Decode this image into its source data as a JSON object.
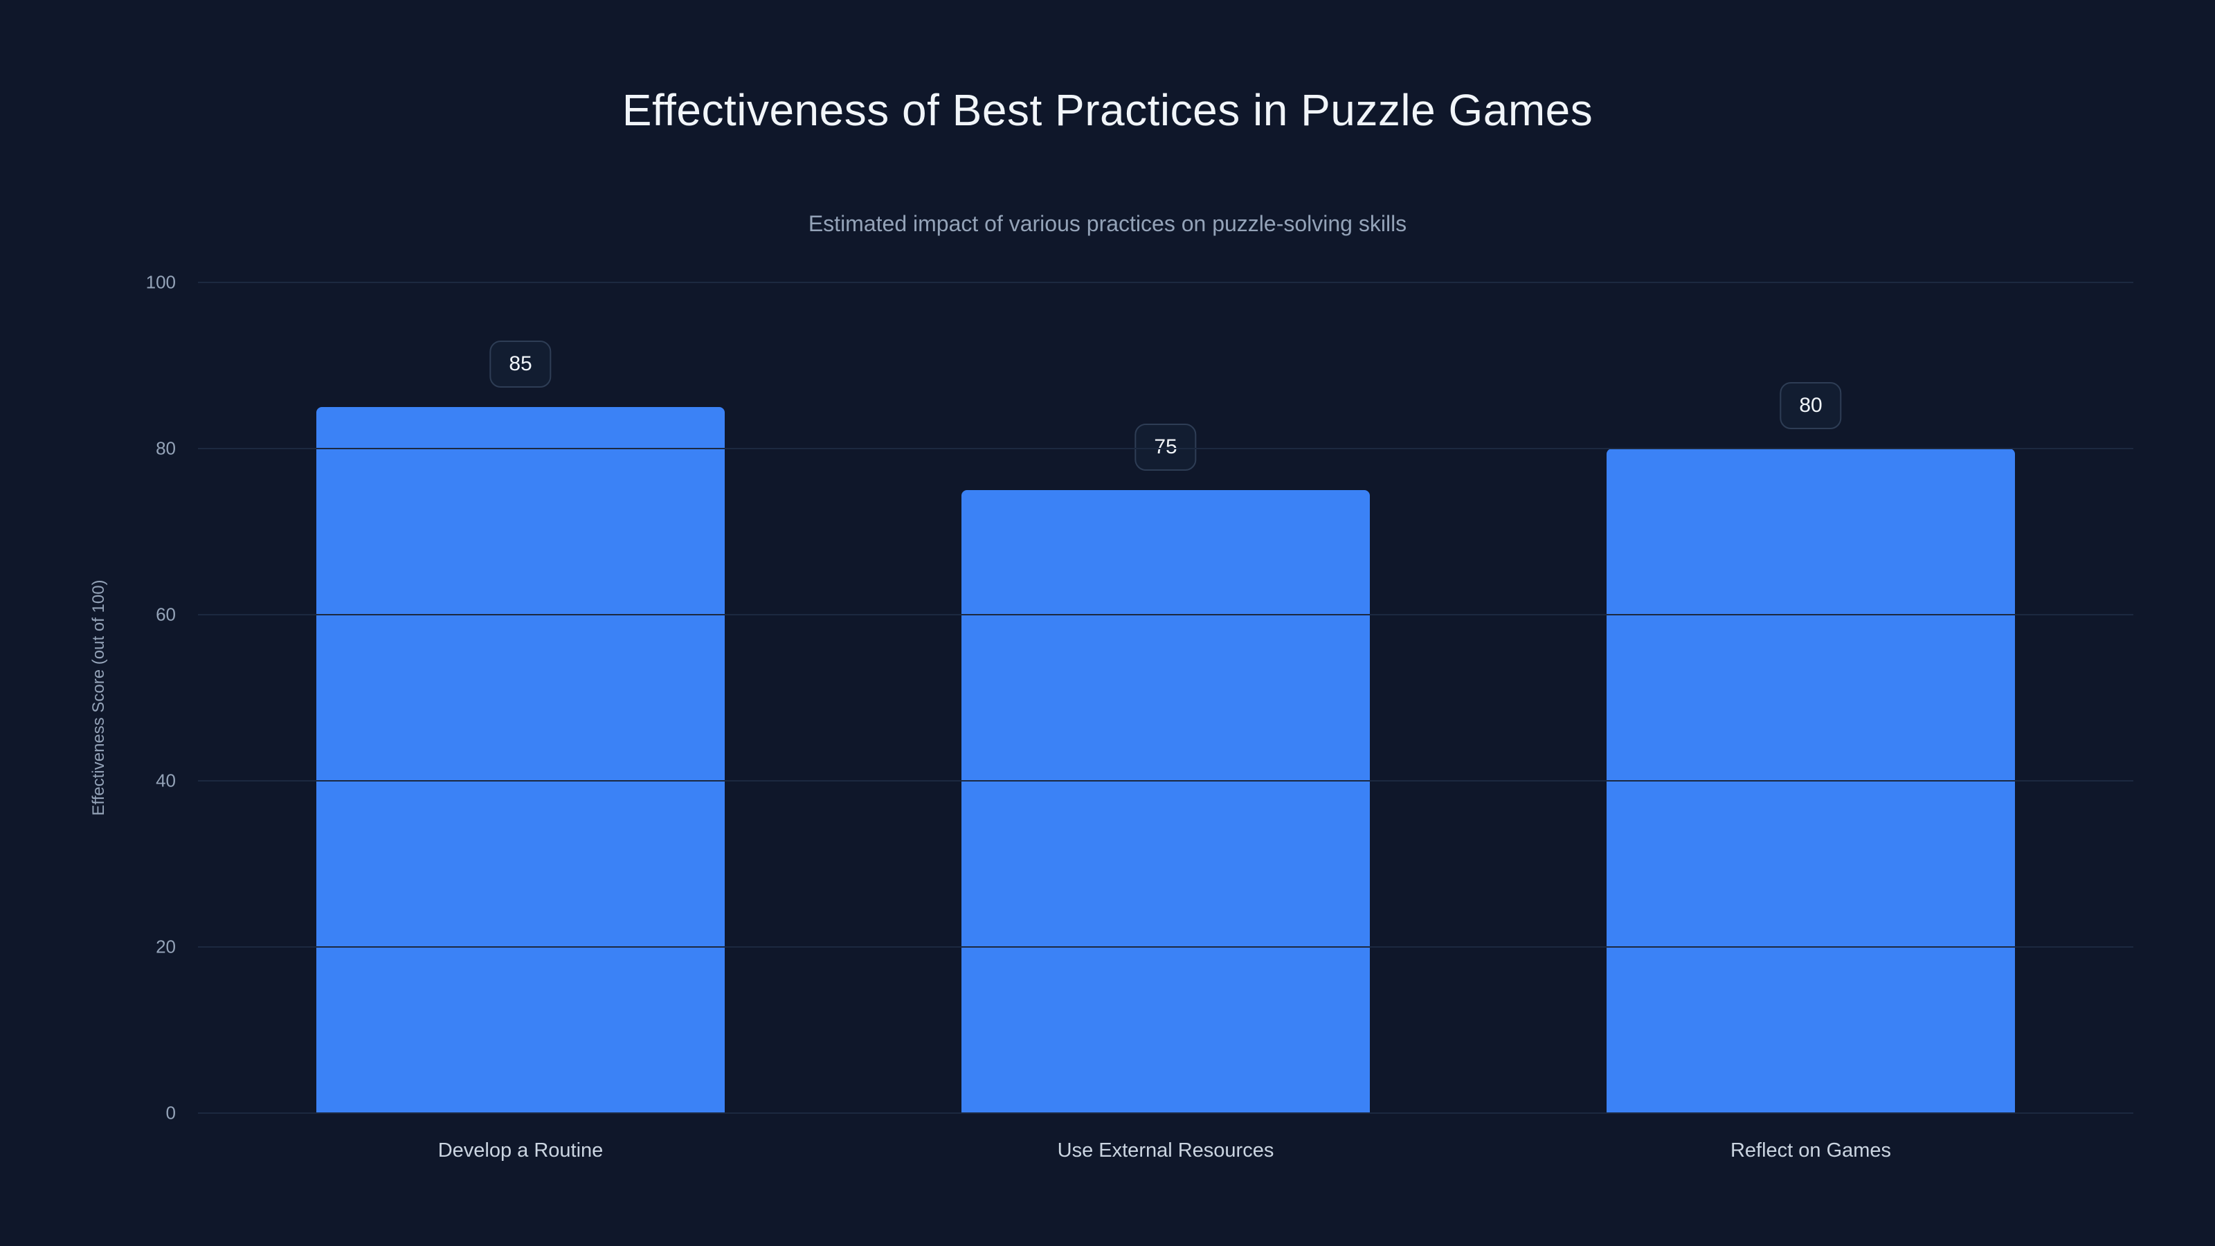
{
  "chart_data": {
    "type": "bar",
    "title": "Effectiveness of Best Practices in Puzzle Games",
    "subtitle": "Estimated impact of various practices on puzzle-solving skills",
    "categories": [
      "Develop a Routine",
      "Use External Resources",
      "Reflect on Games"
    ],
    "values": [
      85,
      75,
      80
    ],
    "xlabel": "",
    "ylabel": "Effectiveness Score (out of 100)",
    "ylim": [
      0,
      100
    ],
    "ytick_step": 20,
    "yticks": [
      0,
      20,
      40,
      60,
      80,
      100
    ],
    "grid": true,
    "legend": false,
    "colors": {
      "background": "#0f172a",
      "bar": "#3b82f6",
      "gridline": "#1c2940",
      "title_text": "#f1f5f9",
      "subtitle_text": "#94a3b8",
      "tick_text": "#94a3b8",
      "badge_border": "#2e3d55",
      "badge_text": "#f1f5f9"
    }
  }
}
